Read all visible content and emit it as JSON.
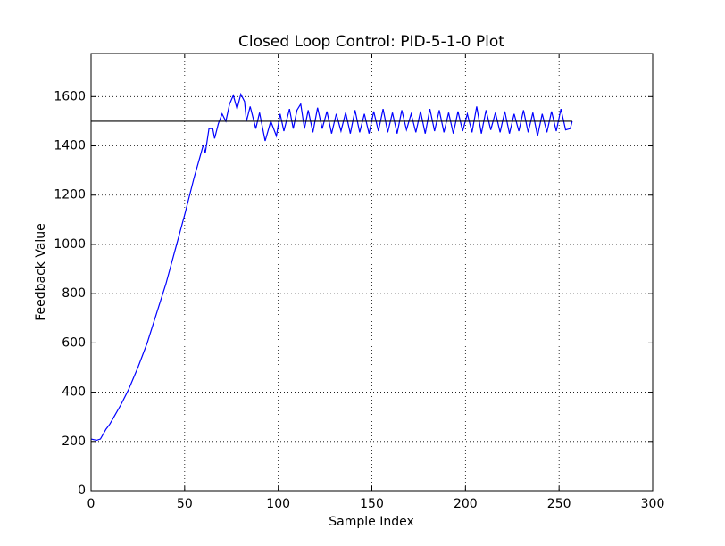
{
  "chart_data": {
    "type": "line",
    "title": "Closed Loop Control: PID-5-1-0 Plot",
    "x_label": "Sample Index",
    "y_label": "Feedback Value",
    "xlim": [
      0,
      300
    ],
    "xticks": [
      0,
      50,
      100,
      150,
      200,
      250,
      300
    ],
    "ylim": [
      0,
      1775
    ],
    "yticks": [
      0,
      200,
      400,
      600,
      800,
      1000,
      1200,
      1400,
      1600
    ],
    "grid": true,
    "series": [
      {
        "color": "#0000ff",
        "x": [
          0,
          3,
          5,
          8,
          10,
          13,
          16,
          20,
          25,
          30,
          35,
          40,
          45,
          50,
          55,
          58,
          60,
          61,
          63,
          65,
          66,
          68,
          70,
          72,
          74,
          76,
          78,
          80,
          82,
          83,
          85,
          88,
          90,
          93,
          96,
          99,
          101,
          103,
          106,
          108,
          110,
          112,
          114,
          116,
          118.5,
          121,
          123.5,
          126,
          128.5,
          131,
          133.5,
          136,
          138.5,
          141,
          143.5,
          146,
          148.5,
          151,
          153.5,
          156,
          158.5,
          161,
          163.5,
          166,
          168.5,
          171,
          173.5,
          176,
          178.5,
          181,
          183.5,
          186,
          188.5,
          191,
          193.5,
          196,
          198.5,
          201,
          203.5,
          206,
          208.5,
          211,
          213.5,
          216,
          218.5,
          221,
          223.5,
          226,
          228.5,
          231,
          233.5,
          236,
          238.5,
          241,
          243.5,
          246,
          248.5,
          251,
          253.5,
          256,
          257
        ],
        "values": [
          210,
          205,
          210,
          250,
          270,
          310,
          350,
          410,
          500,
          600,
          720,
          840,
          980,
          1120,
          1270,
          1350,
          1405,
          1370,
          1470,
          1470,
          1430,
          1490,
          1530,
          1500,
          1570,
          1605,
          1550,
          1610,
          1580,
          1500,
          1560,
          1470,
          1535,
          1420,
          1500,
          1440,
          1530,
          1460,
          1550,
          1470,
          1545,
          1570,
          1470,
          1545,
          1455,
          1555,
          1470,
          1540,
          1450,
          1530,
          1460,
          1535,
          1450,
          1545,
          1455,
          1530,
          1450,
          1540,
          1460,
          1550,
          1455,
          1535,
          1450,
          1545,
          1465,
          1530,
          1455,
          1540,
          1450,
          1550,
          1460,
          1545,
          1455,
          1535,
          1450,
          1540,
          1460,
          1530,
          1455,
          1560,
          1450,
          1545,
          1465,
          1535,
          1455,
          1540,
          1450,
          1530,
          1460,
          1545,
          1455,
          1535,
          1440,
          1530,
          1455,
          1540,
          1460,
          1550,
          1465,
          1470,
          1500
        ]
      },
      {
        "color": "#000000",
        "x": [
          0,
          257
        ],
        "values": [
          1500,
          1500
        ]
      }
    ]
  }
}
